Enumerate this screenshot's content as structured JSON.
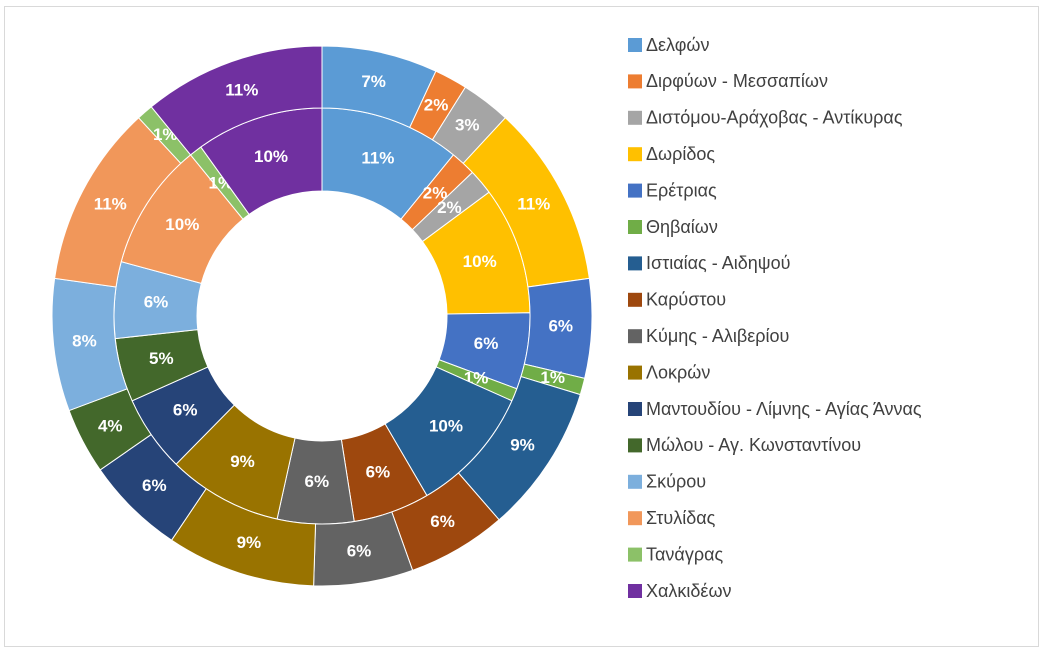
{
  "chart_data": {
    "type": "doughnut",
    "categories": [
      "Δελφών",
      "Διρφύων - Μεσσαπίων",
      "Διστόμου-Αράχοβας - Αντίκυρας",
      "Δωρίδος",
      "Ερέτριας",
      "Θηβαίων",
      "Ιστιαίας - Αιδηψού",
      "Καρύστου",
      "Κύμης - Αλιβερίου",
      "Λοκρών",
      "Μαντουδίου - Λίμνης - Αγίας Άννας",
      "Μώλου - Αγ. Κωνσταντίνου",
      "Σκύρου",
      "Στυλίδας",
      "Τανάγρας",
      "Χαλκιδέων"
    ],
    "colors": [
      "#5b9bd5",
      "#ed7d31",
      "#a5a5a5",
      "#ffc000",
      "#4472c4",
      "#70ad47",
      "#255e91",
      "#9e480e",
      "#636363",
      "#997300",
      "#264478",
      "#43682b",
      "#7cafdd",
      "#f1975a",
      "#8cc168",
      "#7030a0"
    ],
    "series": [
      {
        "values": [
          11,
          2,
          2,
          10,
          6,
          1,
          10,
          6,
          6,
          9,
          6,
          5,
          6,
          10,
          1,
          10
        ],
        "value_labels": [
          "11%",
          "2%",
          "2%",
          "10%",
          "6%",
          "1%",
          "10%",
          "6%",
          "6%",
          "9%",
          "6%",
          "5%",
          "6%",
          "10%",
          "1%",
          "10%"
        ]
      },
      {
        "values": [
          7,
          2,
          3,
          11,
          6,
          1,
          9,
          6,
          6,
          9,
          6,
          4,
          8,
          11,
          1,
          11
        ],
        "value_labels": [
          "7%",
          "2%",
          "3%",
          "11%",
          "6%",
          "1%",
          "9%",
          "6%",
          "6%",
          "9%",
          "6%",
          "4%",
          "8%",
          "11%",
          "1%",
          "11%"
        ]
      }
    ],
    "legend": "right"
  }
}
